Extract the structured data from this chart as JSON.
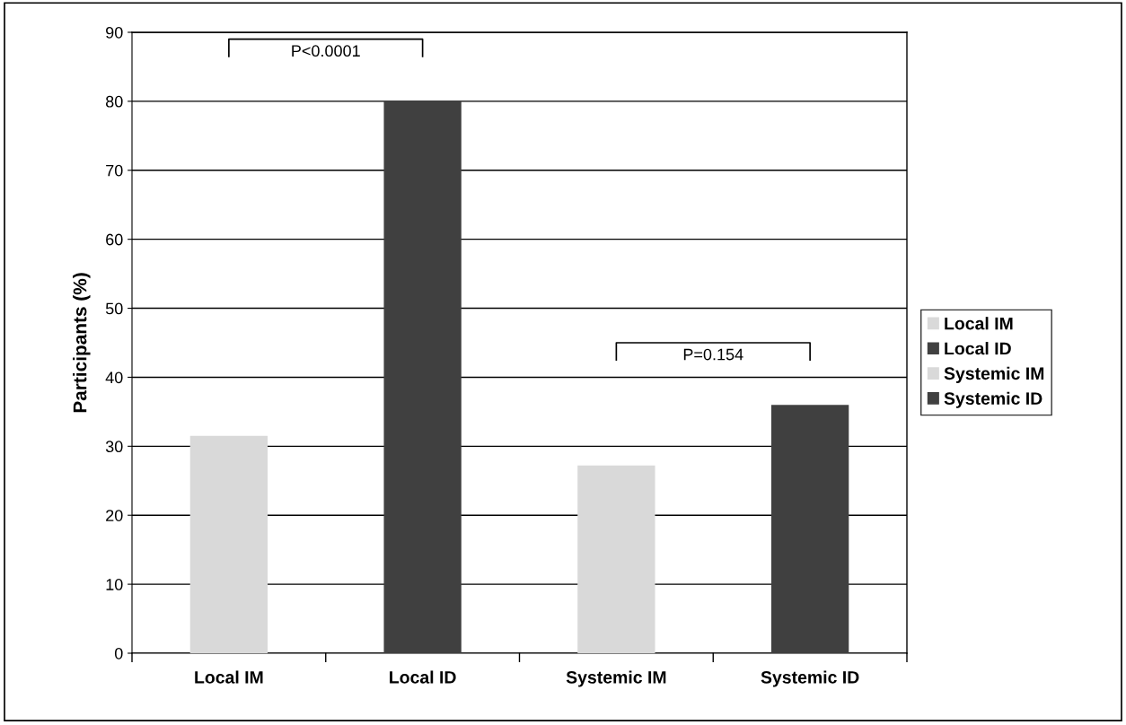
{
  "chart_data": {
    "type": "bar",
    "ylabel": "Participants (%)",
    "categories": [
      "Local IM",
      "Local ID",
      "Systemic IM",
      "Systemic ID"
    ],
    "series": [
      {
        "name": "Local IM",
        "color": "#d9d9d9",
        "values": [
          31.5,
          null,
          null,
          null
        ]
      },
      {
        "name": "Local ID",
        "color": "#404040",
        "values": [
          null,
          80,
          null,
          null
        ]
      },
      {
        "name": "Systemic IM",
        "color": "#d9d9d9",
        "values": [
          null,
          null,
          27.2,
          null
        ]
      },
      {
        "name": "Systemic ID",
        "color": "#404040",
        "values": [
          null,
          null,
          null,
          36
        ]
      }
    ],
    "ylim": [
      0,
      90
    ],
    "yticks": [
      0,
      10,
      20,
      30,
      40,
      50,
      60,
      70,
      80,
      90
    ],
    "grid": "y",
    "legend": "right",
    "annotations": [
      "P<0.0001",
      "P=0.154"
    ]
  }
}
